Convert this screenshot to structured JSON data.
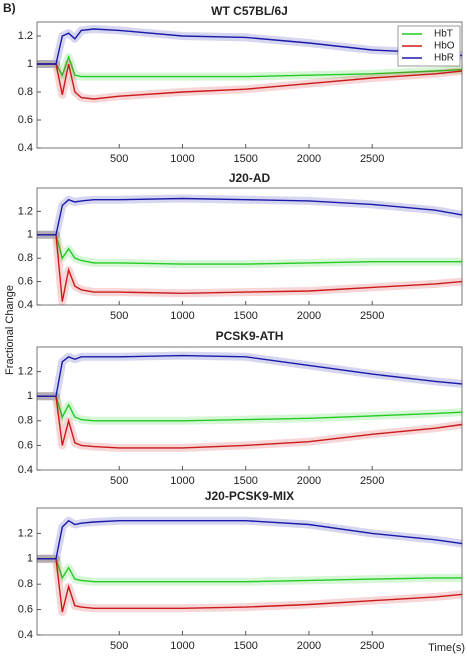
{
  "panel_label": "B)",
  "y_label": "Fractional Change",
  "x_label": "Time(s)",
  "chart_data": [
    {
      "type": "line",
      "title": "WT C57BL/6J",
      "legend": "upper right",
      "x": [
        -150,
        0,
        50,
        100,
        150,
        200,
        300,
        500,
        1000,
        1500,
        2000,
        2500,
        3000,
        3210
      ],
      "xlim": [
        -150,
        3210
      ],
      "xticks": [
        500,
        1000,
        1500,
        2000,
        2500
      ],
      "ylim": [
        0.4,
        1.3
      ],
      "yticks": [
        0.4,
        0.6,
        0.8,
        1,
        1.2
      ],
      "series": [
        {
          "name": "HbT",
          "color": "#22cc22",
          "values": [
            1,
            1,
            0.92,
            1.05,
            0.92,
            0.91,
            0.91,
            0.91,
            0.91,
            0.91,
            0.92,
            0.93,
            0.95,
            0.96
          ]
        },
        {
          "name": "HbO",
          "color": "#cc1a1a",
          "values": [
            1,
            1,
            0.78,
            1.0,
            0.8,
            0.76,
            0.75,
            0.77,
            0.8,
            0.82,
            0.86,
            0.9,
            0.93,
            0.95
          ]
        },
        {
          "name": "HbR",
          "color": "#1a1aaa",
          "values": [
            1,
            1,
            1.2,
            1.22,
            1.18,
            1.24,
            1.25,
            1.24,
            1.2,
            1.19,
            1.15,
            1.1,
            1.08,
            1.06
          ]
        }
      ]
    },
    {
      "type": "line",
      "title": "J20-AD",
      "x": [
        -150,
        0,
        50,
        100,
        150,
        200,
        300,
        500,
        1000,
        1500,
        2000,
        2500,
        3000,
        3210
      ],
      "xlim": [
        -150,
        3210
      ],
      "xticks": [
        500,
        1000,
        1500,
        2000,
        2500
      ],
      "ylim": [
        0.4,
        1.4
      ],
      "yticks": [
        0.4,
        0.6,
        0.8,
        1,
        1.2
      ],
      "series": [
        {
          "color": "#22cc22",
          "values": [
            1,
            1,
            0.8,
            0.88,
            0.8,
            0.78,
            0.76,
            0.76,
            0.75,
            0.75,
            0.76,
            0.77,
            0.77,
            0.77
          ]
        },
        {
          "color": "#cc1a1a",
          "values": [
            1,
            1,
            0.43,
            0.7,
            0.56,
            0.53,
            0.51,
            0.51,
            0.5,
            0.51,
            0.52,
            0.55,
            0.58,
            0.6
          ]
        },
        {
          "color": "#1a1aaa",
          "values": [
            1,
            1,
            1.25,
            1.3,
            1.28,
            1.29,
            1.3,
            1.3,
            1.31,
            1.3,
            1.29,
            1.26,
            1.21,
            1.17
          ]
        }
      ]
    },
    {
      "type": "line",
      "title": "PCSK9-ATH",
      "x": [
        -150,
        0,
        50,
        100,
        150,
        200,
        300,
        500,
        1000,
        1500,
        2000,
        2500,
        3000,
        3210
      ],
      "xlim": [
        -150,
        3210
      ],
      "xticks": [
        500,
        1000,
        1500,
        2000,
        2500
      ],
      "ylim": [
        0.4,
        1.4
      ],
      "yticks": [
        0.4,
        0.6,
        0.8,
        1,
        1.2
      ],
      "series": [
        {
          "color": "#22cc22",
          "values": [
            1,
            1,
            0.83,
            0.93,
            0.83,
            0.81,
            0.8,
            0.8,
            0.8,
            0.81,
            0.82,
            0.84,
            0.86,
            0.87
          ]
        },
        {
          "color": "#cc1a1a",
          "values": [
            1,
            1,
            0.6,
            0.8,
            0.62,
            0.6,
            0.59,
            0.58,
            0.58,
            0.6,
            0.63,
            0.69,
            0.74,
            0.77
          ]
        },
        {
          "color": "#1a1aaa",
          "values": [
            1,
            1,
            1.28,
            1.32,
            1.3,
            1.32,
            1.32,
            1.32,
            1.33,
            1.32,
            1.25,
            1.18,
            1.12,
            1.1
          ]
        }
      ]
    },
    {
      "type": "line",
      "title": "J20-PCSK9-MIX",
      "x": [
        -150,
        0,
        50,
        100,
        150,
        200,
        300,
        500,
        1000,
        1500,
        2000,
        2500,
        3000,
        3210
      ],
      "xlim": [
        -150,
        3210
      ],
      "xticks": [
        500,
        1000,
        1500,
        2000,
        2500
      ],
      "ylim": [
        0.4,
        1.4
      ],
      "yticks": [
        0.4,
        0.6,
        0.8,
        1,
        1.2
      ],
      "series": [
        {
          "color": "#22cc22",
          "values": [
            1,
            1,
            0.85,
            0.93,
            0.84,
            0.83,
            0.82,
            0.82,
            0.82,
            0.82,
            0.83,
            0.84,
            0.85,
            0.85
          ]
        },
        {
          "color": "#cc1a1a",
          "values": [
            1,
            1,
            0.58,
            0.78,
            0.63,
            0.62,
            0.61,
            0.61,
            0.61,
            0.62,
            0.64,
            0.67,
            0.7,
            0.72
          ]
        },
        {
          "color": "#1a1aaa",
          "values": [
            1,
            1,
            1.25,
            1.3,
            1.27,
            1.28,
            1.29,
            1.3,
            1.3,
            1.3,
            1.27,
            1.2,
            1.15,
            1.12
          ]
        }
      ]
    }
  ]
}
